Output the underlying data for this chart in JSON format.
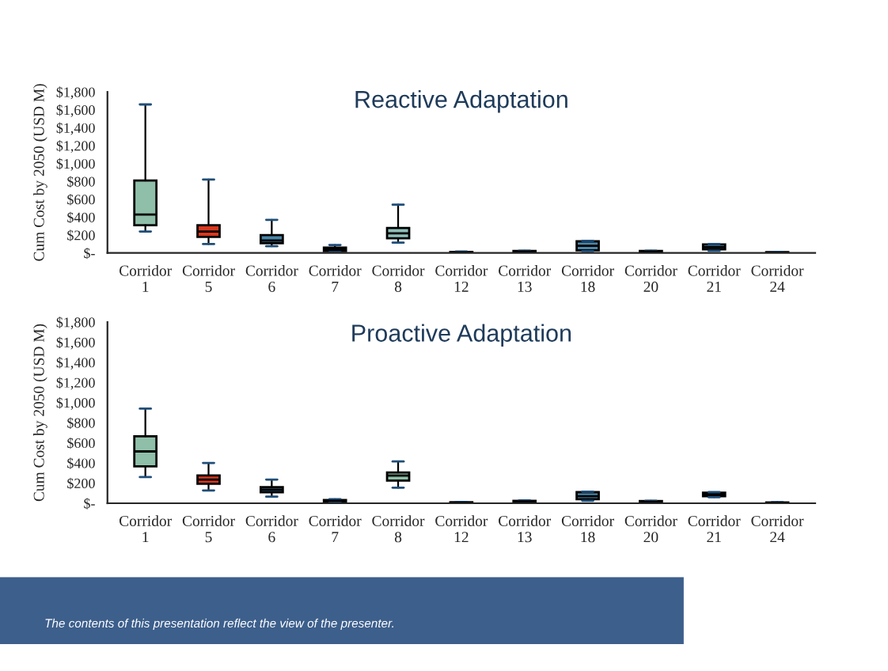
{
  "chart_data": [
    {
      "type": "box",
      "title": "Reactive Adaptation",
      "ylabel": "Cum Cost by 2050 (USD M)",
      "categories": [
        "Corridor 1",
        "Corridor 5",
        "Corridor 6",
        "Corridor 7",
        "Corridor 8",
        "Corridor 12",
        "Corridor 13",
        "Corridor 18",
        "Corridor 20",
        "Corridor 21",
        "Corridor 24"
      ],
      "colors": [
        "#8fbfa8",
        "#d9381e",
        "#4a86a8",
        "#d9381e",
        "#8fbfb8",
        "#4a86a8",
        "#4a86a8",
        "#4a86a8",
        "#4a86a8",
        "#4a86a8",
        "#4a86a8"
      ],
      "boxes": [
        {
          "low": 240,
          "q1": 310,
          "median": 430,
          "q3": 810,
          "high": 1660
        },
        {
          "low": 100,
          "q1": 180,
          "median": 240,
          "q3": 310,
          "high": 820
        },
        {
          "low": 75,
          "q1": 110,
          "median": 140,
          "q3": 200,
          "high": 370
        },
        {
          "low": 10,
          "q1": 20,
          "median": 40,
          "q3": 60,
          "high": 90
        },
        {
          "low": 115,
          "q1": 165,
          "median": 220,
          "q3": 280,
          "high": 540
        },
        {
          "low": 0,
          "q1": 3,
          "median": 7,
          "q3": 12,
          "high": 15
        },
        {
          "low": 5,
          "q1": 10,
          "median": 15,
          "q3": 22,
          "high": 25
        },
        {
          "low": 20,
          "q1": 30,
          "median": 80,
          "q3": 130,
          "high": 135
        },
        {
          "low": 5,
          "q1": 10,
          "median": 15,
          "q3": 22,
          "high": 25
        },
        {
          "low": 25,
          "q1": 40,
          "median": 65,
          "q3": 95,
          "high": 100
        },
        {
          "low": 0,
          "q1": 3,
          "median": 6,
          "q3": 10,
          "high": 12
        }
      ],
      "ylim": [
        0,
        1800
      ],
      "yticks": [
        {
          "value": 0,
          "label": "$-"
        },
        {
          "value": 200,
          "label": "$200"
        },
        {
          "value": 400,
          "label": "$400"
        },
        {
          "value": 600,
          "label": "$600"
        },
        {
          "value": 800,
          "label": "$800"
        },
        {
          "value": 1000,
          "label": "$1,000"
        },
        {
          "value": 1200,
          "label": "$1,200"
        },
        {
          "value": 1400,
          "label": "$1,400"
        },
        {
          "value": 1600,
          "label": "$1,600"
        },
        {
          "value": 1800,
          "label": "$1,800"
        }
      ],
      "grid": false,
      "legend": false
    },
    {
      "type": "box",
      "title": "Proactive Adaptation",
      "ylabel": "Cum Cost by 2050 (USD M)",
      "categories": [
        "Corridor 1",
        "Corridor 5",
        "Corridor 6",
        "Corridor 7",
        "Corridor 8",
        "Corridor 12",
        "Corridor 13",
        "Corridor 18",
        "Corridor 20",
        "Corridor 21",
        "Corridor 24"
      ],
      "colors": [
        "#8fbfa8",
        "#d9381e",
        "#4a86a8",
        "#4a86a8",
        "#8fbfa8",
        "#4a86a8",
        "#4a86a8",
        "#4a86a8",
        "#4a86a8",
        "#4a86a8",
        "#4a86a8"
      ],
      "boxes": [
        {
          "low": 260,
          "q1": 366,
          "median": 515,
          "q3": 665,
          "high": 940
        },
        {
          "low": 127,
          "q1": 194,
          "median": 235,
          "q3": 277,
          "high": 400
        },
        {
          "low": 65,
          "q1": 110,
          "median": 135,
          "q3": 160,
          "high": 235
        },
        {
          "low": 10,
          "q1": 18,
          "median": 25,
          "q3": 32,
          "high": 40
        },
        {
          "low": 155,
          "q1": 225,
          "median": 275,
          "q3": 305,
          "high": 415
        },
        {
          "low": 0,
          "q1": 3,
          "median": 6,
          "q3": 10,
          "high": 12
        },
        {
          "low": 5,
          "q1": 12,
          "median": 18,
          "q3": 24,
          "high": 28
        },
        {
          "low": 25,
          "q1": 40,
          "median": 70,
          "q3": 110,
          "high": 115
        },
        {
          "low": 5,
          "q1": 10,
          "median": 15,
          "q3": 22,
          "high": 25
        },
        {
          "low": 60,
          "q1": 70,
          "median": 85,
          "q3": 105,
          "high": 110
        },
        {
          "low": 0,
          "q1": 2,
          "median": 5,
          "q3": 8,
          "high": 10
        }
      ],
      "ylim": [
        0,
        1800
      ],
      "yticks": [
        {
          "value": 0,
          "label": "$-"
        },
        {
          "value": 200,
          "label": "$200"
        },
        {
          "value": 400,
          "label": "$400"
        },
        {
          "value": 600,
          "label": "$600"
        },
        {
          "value": 800,
          "label": "$800"
        },
        {
          "value": 1000,
          "label": "$1,000"
        },
        {
          "value": 1200,
          "label": "$1,200"
        },
        {
          "value": 1400,
          "label": "$1,400"
        },
        {
          "value": 1600,
          "label": "$1,600"
        },
        {
          "value": 1800,
          "label": "$1,800"
        }
      ],
      "grid": false,
      "legend": false,
      "annotations": [
        "The contents of this presentation reflect the view of the presenter."
      ]
    }
  ]
}
